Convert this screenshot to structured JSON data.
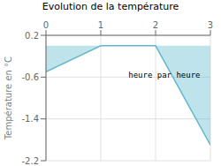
{
  "chart_data": {
    "type": "area",
    "title": "Evolution de la température",
    "ylabel": "Température en °C",
    "annotations": [
      "heure par heure"
    ],
    "x": [
      0,
      1,
      2,
      3
    ],
    "values": [
      -0.5,
      0.0,
      0.0,
      -1.9
    ],
    "color": "#60b8cc",
    "xlim": [
      0,
      3
    ],
    "ylim": [
      -2.2,
      0.2
    ],
    "xticks": [
      0,
      1,
      2,
      3
    ],
    "yticks": [
      0.2,
      -0.6,
      -1.4,
      -2.2
    ],
    "grid": true
  }
}
